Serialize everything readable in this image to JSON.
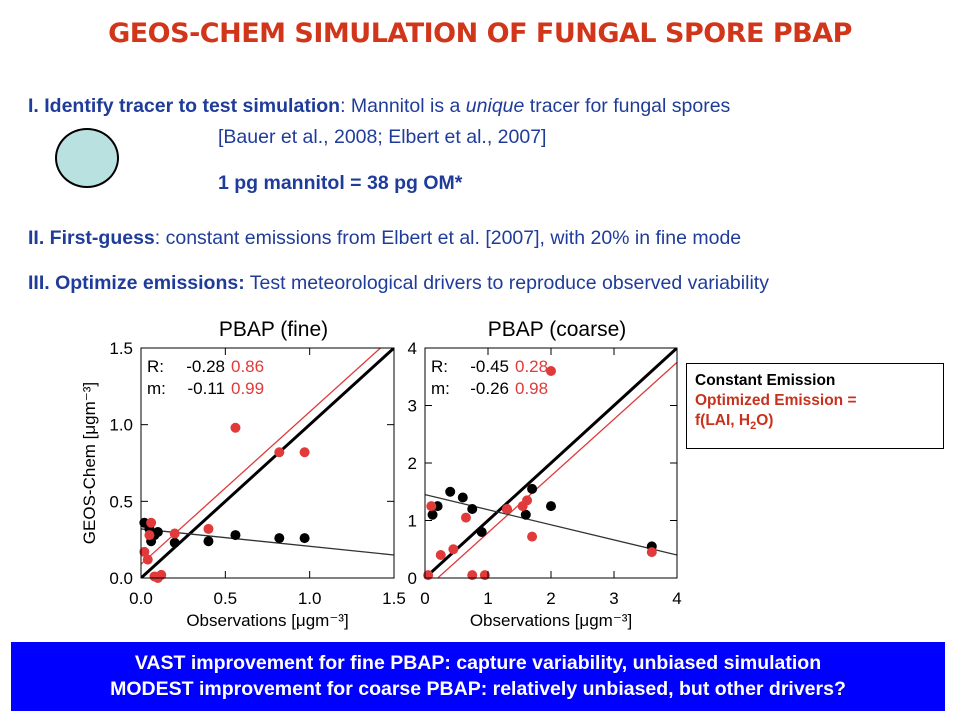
{
  "title": "GEOS-CHEM SIMULATION OF FUNGAL SPORE PBAP",
  "section1": {
    "label": "I. Identify tracer to test simulation",
    "text_a": ": Mannitol is a ",
    "text_em": "unique",
    "text_b": " tracer for fungal spores",
    "ref": "[Bauer et al., 2008; Elbert et al., 2007]",
    "formula": "1 pg mannitol = 38 pg OM*"
  },
  "section2": {
    "label": "II. First-guess",
    "text": ": constant emissions from Elbert et al. [2007], with 20% in fine mode"
  },
  "section3": {
    "label": "III. Optimize emissions:",
    "text": " Test meteorological drivers to reproduce observed variability"
  },
  "legend": {
    "constant": "Constant Emission",
    "optimized": "Optimized Emission =",
    "formula_a": "f(LAI, H",
    "formula_sub": "2",
    "formula_b": "O)"
  },
  "bottom": {
    "line1": "VAST improvement for fine PBAP: capture variability, unbiased simulation",
    "line2": "MODEST improvement for coarse PBAP: relatively unbiased, but other drivers?"
  },
  "colors": {
    "title": "#d1351a",
    "text": "#1f3c9a",
    "red": "#e03a3a",
    "banner": "#0000ff",
    "circle": "#b9e1e0"
  },
  "chart_data": [
    {
      "type": "scatter",
      "title": "PBAP (fine)",
      "xlabel": "Observations [μgm⁻³]",
      "ylabel": "GEOS-Chem [μgm⁻³]",
      "xlim": [
        0,
        1.5
      ],
      "ylim": [
        0,
        1.5
      ],
      "xticks": [
        "0.0",
        "0.5",
        "1.0",
        "1.5"
      ],
      "yticks": [
        "0.0",
        "0.5",
        "1.0",
        "1.5"
      ],
      "stats": {
        "R": {
          "label": "R:",
          "constant": "-0.28",
          "optimized": "0.86"
        },
        "m": {
          "label": "m:",
          "constant": "-0.11",
          "optimized": "0.99"
        }
      },
      "fit_constant": [
        [
          0.0,
          0.32
        ],
        [
          1.5,
          0.15
        ]
      ],
      "fit_optimized": [
        [
          0.0,
          0.09
        ],
        [
          1.5,
          1.58
        ]
      ],
      "series": [
        {
          "name": "Constant Emission",
          "color": "#000000",
          "points": [
            [
              0.02,
              0.36
            ],
            [
              0.05,
              0.32
            ],
            [
              0.06,
              0.24
            ],
            [
              0.08,
              0.28
            ],
            [
              0.1,
              0.3
            ],
            [
              0.2,
              0.23
            ],
            [
              0.4,
              0.24
            ],
            [
              0.56,
              0.28
            ],
            [
              0.82,
              0.26
            ],
            [
              0.97,
              0.26
            ]
          ]
        },
        {
          "name": "Optimized Emission",
          "color": "#e03a3a",
          "points": [
            [
              0.02,
              0.17
            ],
            [
              0.04,
              0.12
            ],
            [
              0.05,
              0.28
            ],
            [
              0.06,
              0.36
            ],
            [
              0.08,
              0.01
            ],
            [
              0.1,
              0.0
            ],
            [
              0.12,
              0.02
            ],
            [
              0.2,
              0.29
            ],
            [
              0.4,
              0.32
            ],
            [
              0.56,
              0.98
            ],
            [
              0.82,
              0.82
            ],
            [
              0.97,
              0.82
            ]
          ]
        }
      ]
    },
    {
      "type": "scatter",
      "title": "PBAP (coarse)",
      "xlabel": "Observations [μgm⁻³]",
      "ylabel": "",
      "xlim": [
        0,
        4
      ],
      "ylim": [
        0,
        4
      ],
      "xticks": [
        "0",
        "1",
        "2",
        "3",
        "4"
      ],
      "yticks": [
        "0",
        "1",
        "2",
        "3",
        "4"
      ],
      "stats": {
        "R": {
          "label": "R:",
          "constant": "-0.45",
          "optimized": "0.28"
        },
        "m": {
          "label": "m:",
          "constant": "-0.26",
          "optimized": "0.98"
        }
      },
      "fit_constant": [
        [
          0.0,
          1.45
        ],
        [
          4.0,
          0.4
        ]
      ],
      "fit_optimized": [
        [
          0.0,
          -0.2
        ],
        [
          4.0,
          3.75
        ]
      ],
      "series": [
        {
          "name": "Constant Emission",
          "color": "#000000",
          "points": [
            [
              0.12,
              1.1
            ],
            [
              0.2,
              1.25
            ],
            [
              0.4,
              1.5
            ],
            [
              0.6,
              1.4
            ],
            [
              0.75,
              1.2
            ],
            [
              0.9,
              0.8
            ],
            [
              1.3,
              1.2
            ],
            [
              1.6,
              1.1
            ],
            [
              1.7,
              1.55
            ],
            [
              2.0,
              1.25
            ],
            [
              3.6,
              0.55
            ]
          ]
        },
        {
          "name": "Optimized Emission",
          "color": "#e03a3a",
          "points": [
            [
              0.05,
              0.05
            ],
            [
              0.1,
              1.25
            ],
            [
              0.25,
              0.4
            ],
            [
              0.45,
              0.5
            ],
            [
              0.65,
              1.05
            ],
            [
              0.75,
              0.05
            ],
            [
              0.95,
              0.05
            ],
            [
              1.3,
              1.2
            ],
            [
              1.55,
              1.25
            ],
            [
              1.62,
              1.35
            ],
            [
              1.7,
              0.72
            ],
            [
              2.0,
              3.6
            ],
            [
              3.6,
              0.45
            ]
          ]
        }
      ]
    }
  ]
}
